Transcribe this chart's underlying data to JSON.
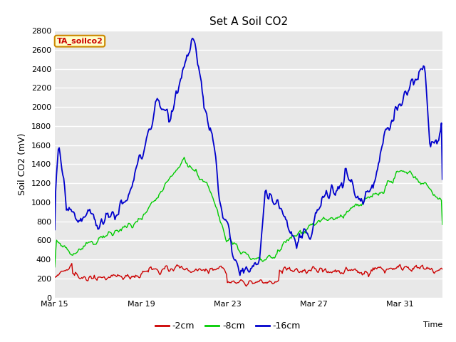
{
  "title": "Set A Soil CO2",
  "xlabel": "Time",
  "ylabel": "Soil CO2 (mV)",
  "ylim": [
    0,
    2800
  ],
  "yticks": [
    0,
    200,
    400,
    600,
    800,
    1000,
    1200,
    1400,
    1600,
    1800,
    2000,
    2200,
    2400,
    2600,
    2800
  ],
  "xtick_labels": [
    "Mar 15",
    "Mar 19",
    "Mar 23",
    "Mar 27",
    "Mar 31"
  ],
  "xtick_positions": [
    0,
    96,
    192,
    288,
    384
  ],
  "line_colors": {
    "2cm": "#cc0000",
    "8cm": "#00cc00",
    "16cm": "#0000cc"
  },
  "legend_labels": [
    "-2cm",
    "-8cm",
    "-16cm"
  ],
  "annotation_text": "TA_soilco2",
  "fig_bg_color": "#ffffff",
  "plot_bg_color": "#e8e8e8",
  "grid_color": "#ffffff",
  "total_points": 432
}
